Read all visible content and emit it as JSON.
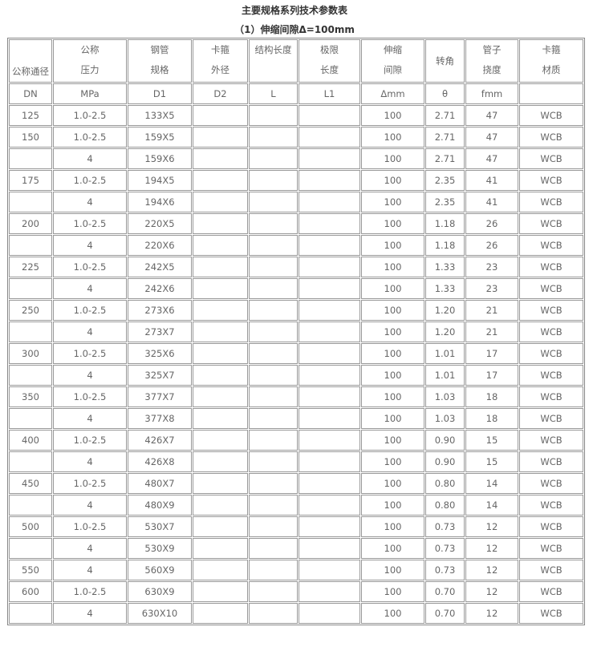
{
  "title": "主要规格系列技术参数表",
  "subtitle": "（1）伸缩间隙Δ=100mm",
  "header": [
    [
      "公称通径"
    ],
    [
      "公称",
      "压力"
    ],
    [
      "钢管",
      "规格"
    ],
    [
      "卡箍",
      "外径"
    ],
    [
      "结构长度"
    ],
    [
      "极限",
      "长度"
    ],
    [
      "伸缩",
      "间隙"
    ],
    [
      "转角"
    ],
    [
      "管子",
      "挠度"
    ],
    [
      "卡箍",
      "材质"
    ]
  ],
  "units": [
    "DN",
    "MPa",
    "D1",
    "D2",
    "L",
    "L1",
    "Δmm",
    "θ",
    "fmm",
    ""
  ],
  "rows": [
    [
      "125",
      "1.0-2.5",
      "133X5",
      "",
      "",
      "",
      "100",
      "2.71",
      "47",
      "WCB"
    ],
    [
      "150",
      "1.0-2.5",
      "159X5",
      "",
      "",
      "",
      "100",
      "2.71",
      "47",
      "WCB"
    ],
    [
      "",
      "4",
      "159X6",
      "",
      "",
      "",
      "100",
      "2.71",
      "47",
      "WCB"
    ],
    [
      "175",
      "1.0-2.5",
      "194X5",
      "",
      "",
      "",
      "100",
      "2.35",
      "41",
      "WCB"
    ],
    [
      "",
      "4",
      "194X6",
      "",
      "",
      "",
      "100",
      "2.35",
      "41",
      "WCB"
    ],
    [
      "200",
      "1.0-2.5",
      "220X5",
      "",
      "",
      "",
      "100",
      "1.18",
      "26",
      "WCB"
    ],
    [
      "",
      "4",
      "220X6",
      "",
      "",
      "",
      "100",
      "1.18",
      "26",
      "WCB"
    ],
    [
      "225",
      "1.0-2.5",
      "242X5",
      "",
      "",
      "",
      "100",
      "1.33",
      "23",
      "WCB"
    ],
    [
      "",
      "4",
      "242X6",
      "",
      "",
      "",
      "100",
      "1.33",
      "23",
      "WCB"
    ],
    [
      "250",
      "1.0-2.5",
      "273X6",
      "",
      "",
      "",
      "100",
      "1.20",
      "21",
      "WCB"
    ],
    [
      "",
      "4",
      "273X7",
      "",
      "",
      "",
      "100",
      "1.20",
      "21",
      "WCB"
    ],
    [
      "300",
      "1.0-2.5",
      "325X6",
      "",
      "",
      "",
      "100",
      "1.01",
      "17",
      "WCB"
    ],
    [
      "",
      "4",
      "325X7",
      "",
      "",
      "",
      "100",
      "1.01",
      "17",
      "WCB"
    ],
    [
      "350",
      "1.0-2.5",
      "377X7",
      "",
      "",
      "",
      "100",
      "1.03",
      "18",
      "WCB"
    ],
    [
      "",
      "4",
      "377X8",
      "",
      "",
      "",
      "100",
      "1.03",
      "18",
      "WCB"
    ],
    [
      "400",
      "1.0-2.5",
      "426X7",
      "",
      "",
      "",
      "100",
      "0.90",
      "15",
      "WCB"
    ],
    [
      "",
      "4",
      "426X8",
      "",
      "",
      "",
      "100",
      "0.90",
      "15",
      "WCB"
    ],
    [
      "450",
      "1.0-2.5",
      "480X7",
      "",
      "",
      "",
      "100",
      "0.80",
      "14",
      "WCB"
    ],
    [
      "",
      "4",
      "480X9",
      "",
      "",
      "",
      "100",
      "0.80",
      "14",
      "WCB"
    ],
    [
      "500",
      "1.0-2.5",
      "530X7",
      "",
      "",
      "",
      "100",
      "0.73",
      "12",
      "WCB"
    ],
    [
      "",
      "4",
      "530X9",
      "",
      "",
      "",
      "100",
      "0.73",
      "12",
      "WCB"
    ],
    [
      "550",
      "4",
      "560X9",
      "",
      "",
      "",
      "100",
      "0.73",
      "12",
      "WCB"
    ],
    [
      "600",
      "1.0-2.5",
      "630X9",
      "",
      "",
      "",
      "100",
      "0.70",
      "12",
      "WCB"
    ],
    [
      "",
      "4",
      "630X10",
      "",
      "",
      "",
      "100",
      "0.70",
      "12",
      "WCB"
    ]
  ]
}
